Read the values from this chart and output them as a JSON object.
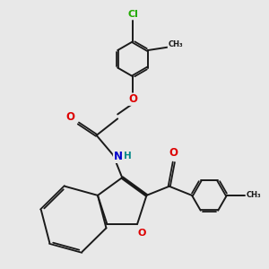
{
  "background_color": "#e8e8e8",
  "bond_color": "#1a1a1a",
  "atom_colors": {
    "O": "#dd0000",
    "N": "#0000cc",
    "H": "#008888",
    "Cl": "#22aa00",
    "C": "#1a1a1a"
  }
}
